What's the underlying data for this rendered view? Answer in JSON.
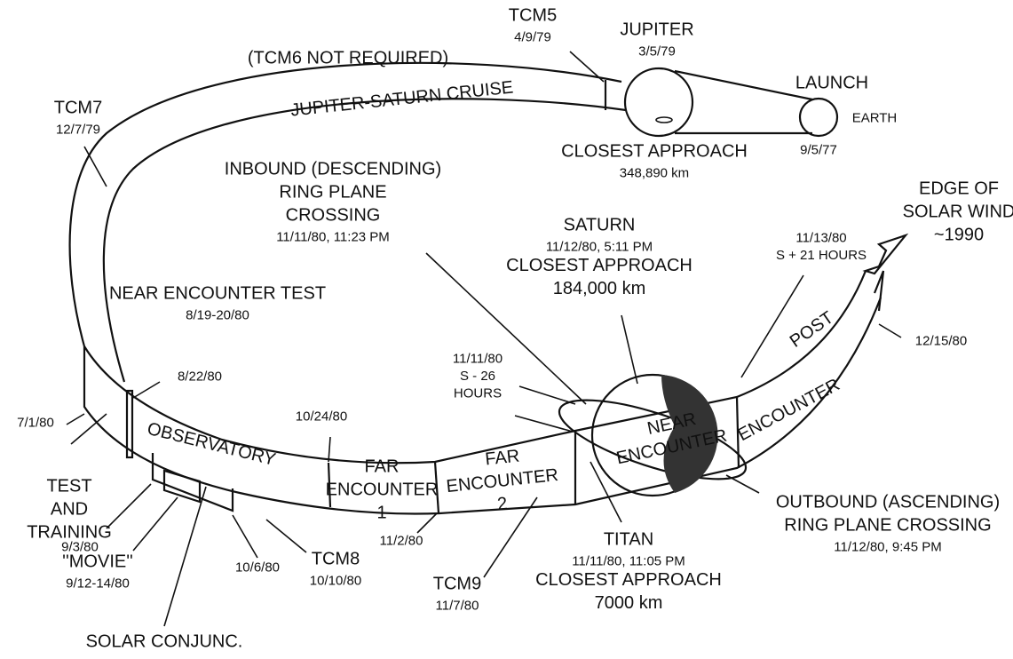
{
  "labels": [
    {
      "lines": [
        "TCM5",
        "4/9/79"
      ]
    },
    {
      "lines": [
        "JUPITER",
        "3/5/79"
      ]
    },
    {
      "lines": [
        "LAUNCH"
      ]
    },
    {
      "lines": [
        "EARTH"
      ]
    },
    {
      "lines": [
        "9/5/77"
      ]
    },
    {
      "lines": [
        "(TCM6 NOT REQUIRED)"
      ]
    },
    {
      "lines": [
        "JUPITER-SATURN CRUISE"
      ]
    },
    {
      "lines": [
        "TCM7",
        "12/7/79"
      ]
    },
    {
      "lines": [
        "CLOSEST APPROACH",
        "348,890 km"
      ]
    },
    {
      "lines": [
        "INBOUND (DESCENDING)",
        "RING PLANE",
        "CROSSING",
        "11/11/80, 11:23 PM"
      ]
    },
    {
      "lines": [
        "SATURN",
        "11/12/80, 5:11 PM",
        "CLOSEST APPROACH",
        "184,000 km"
      ]
    },
    {
      "lines": [
        "EDGE OF",
        "SOLAR WIND",
        "~1990"
      ]
    },
    {
      "lines": [
        "11/13/80",
        "S + 21 HOURS"
      ]
    },
    {
      "lines": [
        "NEAR ENCOUNTER TEST",
        "8/19-20/80"
      ]
    },
    {
      "lines": [
        "8/22/80"
      ]
    },
    {
      "lines": [
        "7/1/80"
      ]
    },
    {
      "lines": [
        "11/11/80",
        "S - 26",
        "HOURS"
      ]
    },
    {
      "lines": [
        "10/24/80"
      ]
    },
    {
      "lines": [
        "12/15/80"
      ]
    },
    {
      "lines": [
        "POST"
      ]
    },
    {
      "lines": [
        "ENCOUNTER"
      ]
    },
    {
      "lines": [
        "OBSERVATORY"
      ]
    },
    {
      "lines": [
        "FAR",
        "ENCOUNTER",
        "1"
      ]
    },
    {
      "lines": [
        "FAR",
        "ENCOUNTER",
        "2"
      ]
    },
    {
      "lines": [
        "NEAR",
        "ENCOUNTER"
      ]
    },
    {
      "lines": [
        "TEST",
        "AND",
        "TRAINING"
      ]
    },
    {
      "lines": [
        "9/3/80"
      ]
    },
    {
      "lines": [
        "''MOVIE''",
        "9/12-14/80"
      ]
    },
    {
      "lines": [
        "10/6/80"
      ]
    },
    {
      "lines": [
        "TCM8",
        "10/10/80"
      ]
    },
    {
      "lines": [
        "11/2/80"
      ]
    },
    {
      "lines": [
        "TCM9",
        "11/7/80"
      ]
    },
    {
      "lines": [
        "TITAN",
        "11/11/80, 11:05 PM",
        "CLOSEST APPROACH",
        "7000 km"
      ]
    },
    {
      "lines": [
        "OUTBOUND (ASCENDING)",
        "RING PLANE CROSSING",
        "11/12/80, 9:45 PM"
      ]
    },
    {
      "lines": [
        "SOLAR CONJUNC."
      ]
    }
  ]
}
